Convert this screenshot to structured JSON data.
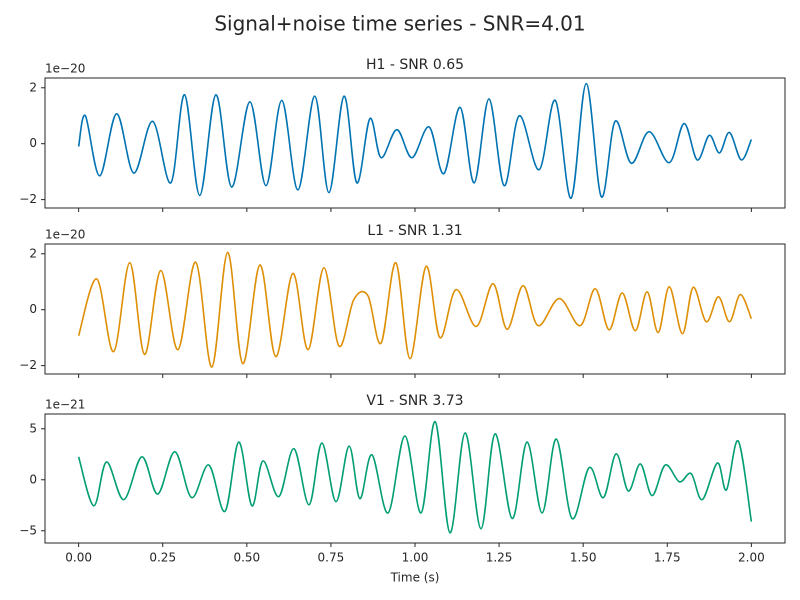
{
  "title": "Signal+noise time series - SNR=4.01",
  "chart_data": [
    {
      "type": "line",
      "title": "H1 - SNR 0.65",
      "y_offset_label": "1e−20",
      "color": "#0173b2",
      "x": [
        0,
        0.02,
        0.0625,
        0.113,
        0.164,
        0.22,
        0.274,
        0.315,
        0.36,
        0.408,
        0.455,
        0.509,
        0.557,
        0.604,
        0.652,
        0.702,
        0.744,
        0.789,
        0.827,
        0.866,
        0.899,
        0.946,
        0.991,
        1.042,
        1.086,
        1.134,
        1.176,
        1.22,
        1.265,
        1.31,
        1.369,
        1.417,
        1.464,
        1.509,
        1.554,
        1.595,
        1.643,
        1.696,
        1.756,
        1.8,
        1.839,
        1.875,
        1.905,
        1.935,
        1.97,
        2.0
      ],
      "values": [
        -0.1,
        1.0,
        -1.15,
        1.07,
        -1.05,
        0.8,
        -1.4,
        1.75,
        -1.85,
        1.75,
        -1.55,
        1.5,
        -1.5,
        1.55,
        -1.65,
        1.7,
        -1.75,
        1.7,
        -1.4,
        0.9,
        -0.5,
        0.5,
        -0.5,
        0.6,
        -1.07,
        1.3,
        -1.4,
        1.6,
        -1.5,
        1.0,
        -0.93,
        1.55,
        -1.95,
        2.15,
        -1.9,
        0.8,
        -0.7,
        0.43,
        -0.68,
        0.72,
        -0.58,
        0.3,
        -0.33,
        0.4,
        -0.58,
        0.15
      ],
      "xlim": [
        -0.1,
        2.1
      ],
      "ylim": [
        -2.3,
        2.35
      ],
      "yticks": [
        {
          "value": -2,
          "label": "−2"
        },
        0,
        2
      ]
    },
    {
      "type": "line",
      "title": "L1 - SNR 1.31",
      "y_offset_label": "1e−20",
      "color": "#de8f05",
      "x": [
        0,
        0.054,
        0.104,
        0.152,
        0.196,
        0.244,
        0.295,
        0.348,
        0.396,
        0.443,
        0.488,
        0.539,
        0.586,
        0.637,
        0.682,
        0.729,
        0.774,
        0.818,
        0.86,
        0.899,
        0.943,
        0.985,
        1.033,
        1.074,
        1.122,
        1.182,
        1.232,
        1.274,
        1.321,
        1.366,
        1.429,
        1.491,
        1.536,
        1.577,
        1.616,
        1.655,
        1.69,
        1.723,
        1.756,
        1.795,
        1.827,
        1.866,
        1.902,
        1.935,
        1.967,
        2.0
      ],
      "values": [
        -0.93,
        1.1,
        -1.5,
        1.68,
        -1.6,
        1.4,
        -1.43,
        1.7,
        -2.05,
        2.05,
        -1.93,
        1.6,
        -1.68,
        1.3,
        -1.43,
        1.5,
        -1.3,
        0.36,
        0.5,
        -1.2,
        1.68,
        -1.75,
        1.55,
        -1.0,
        0.72,
        -0.6,
        0.93,
        -0.7,
        0.86,
        -0.57,
        0.4,
        -0.57,
        0.75,
        -0.72,
        0.6,
        -0.75,
        0.64,
        -0.82,
        0.82,
        -0.86,
        0.8,
        -0.43,
        0.46,
        -0.43,
        0.54,
        -0.32
      ],
      "xlim": [
        -0.1,
        2.1
      ],
      "ylim": [
        -2.3,
        2.35
      ],
      "yticks": [
        {
          "value": -2,
          "label": "−2"
        },
        0,
        2
      ]
    },
    {
      "type": "line",
      "title": "V1 - SNR 3.73",
      "y_offset_label": "1e−21",
      "color": "#029e73",
      "x": [
        0,
        0.045,
        0.083,
        0.134,
        0.188,
        0.235,
        0.286,
        0.336,
        0.387,
        0.435,
        0.476,
        0.515,
        0.548,
        0.595,
        0.64,
        0.685,
        0.723,
        0.765,
        0.804,
        0.836,
        0.872,
        0.92,
        0.97,
        1.018,
        1.06,
        1.104,
        1.149,
        1.196,
        1.238,
        1.289,
        1.333,
        1.378,
        1.42,
        1.467,
        1.518,
        1.56,
        1.598,
        1.634,
        1.67,
        1.705,
        1.744,
        1.786,
        1.821,
        1.854,
        1.899,
        1.926,
        1.961,
        2.0
      ],
      "values": [
        2.25,
        -2.55,
        1.75,
        -1.95,
        2.25,
        -1.4,
        2.75,
        -1.75,
        1.45,
        -3.1,
        3.7,
        -2.55,
        1.85,
        -1.65,
        3.05,
        -2.45,
        3.6,
        -2.15,
        3.3,
        -1.85,
        2.45,
        -3.25,
        4.3,
        -3.25,
        5.7,
        -5.2,
        4.6,
        -4.8,
        4.5,
        -3.8,
        3.7,
        -3.25,
        4.0,
        -3.8,
        1.2,
        -1.75,
        2.55,
        -1.1,
        1.55,
        -1.55,
        1.45,
        -0.2,
        0.6,
        -1.95,
        1.65,
        -1.0,
        3.8,
        -4.1
      ],
      "xlim": [
        -0.1,
        2.1
      ],
      "ylim": [
        -6.2,
        6.45
      ],
      "yticks": [
        {
          "value": -5,
          "label": "−5"
        },
        0,
        5
      ],
      "xticks": [
        {
          "value": 0,
          "label": "0.00"
        },
        {
          "value": 0.25,
          "label": "0.25"
        },
        {
          "value": 0.5,
          "label": "0.50"
        },
        {
          "value": 0.75,
          "label": "0.75"
        },
        {
          "value": 1,
          "label": "1.00"
        },
        {
          "value": 1.25,
          "label": "1.25"
        },
        {
          "value": 1.5,
          "label": "1.50"
        },
        {
          "value": 1.75,
          "label": "1.75"
        },
        {
          "value": 2,
          "label": "2.00"
        }
      ],
      "xlabel": "Time (s)"
    }
  ]
}
